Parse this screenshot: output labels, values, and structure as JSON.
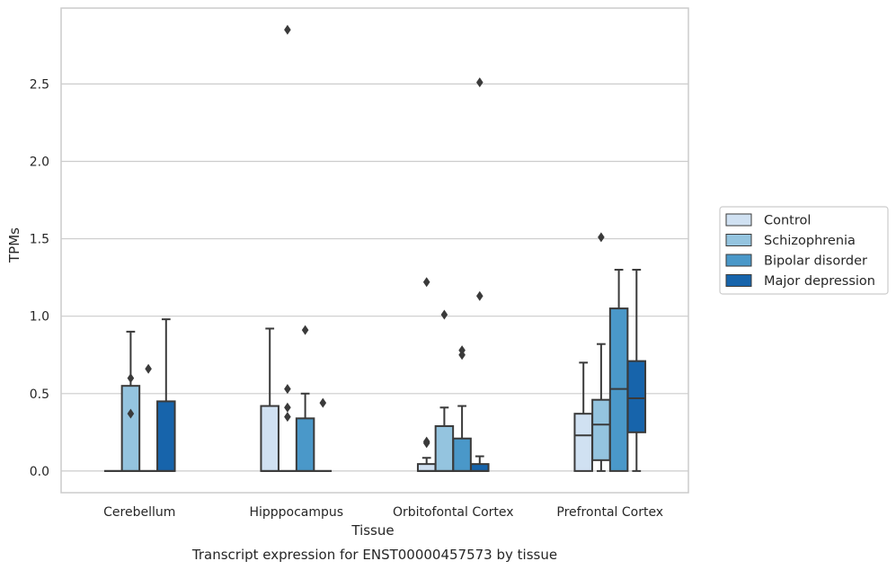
{
  "chart_data": {
    "type": "box",
    "title": "",
    "caption": "Transcript expression for ENST00000457573 by tissue",
    "xlabel": "Tissue",
    "ylabel": "TPMs",
    "ylim": [
      -0.14,
      2.99
    ],
    "yticks": [
      0.0,
      0.5,
      1.0,
      1.5,
      2.0,
      2.5
    ],
    "ytick_labels": [
      "0.0",
      "0.5",
      "1.0",
      "1.5",
      "2.0",
      "2.5"
    ],
    "grid": "horizontal",
    "legend_position": "outside-right",
    "categories": [
      "Cerebellum",
      "Hipppocampus",
      "Orbitofontal Cortex",
      "Prefrontal Cortex"
    ],
    "series": [
      {
        "name": "Control",
        "color": "#d0e1f2",
        "boxes": [
          {
            "min": 0,
            "q1": 0,
            "median": 0,
            "q3": 0,
            "max": 0,
            "outliers": []
          },
          {
            "min": 0,
            "q1": 0,
            "median": 0,
            "q3": 0.42,
            "max": 0.92,
            "outliers": []
          },
          {
            "min": 0,
            "q1": 0,
            "median": 0,
            "q3": 0.045,
            "max": 0.085,
            "outliers": [
              0.18,
              0.19,
              1.22
            ]
          },
          {
            "min": 0,
            "q1": 0,
            "median": 0.23,
            "q3": 0.37,
            "max": 0.7,
            "outliers": []
          }
        ]
      },
      {
        "name": "Schizophrenia",
        "color": "#94c4df",
        "boxes": [
          {
            "min": 0,
            "q1": 0,
            "median": 0,
            "q3": 0.55,
            "max": 0.9,
            "outliers": [
              0.37,
              0.6
            ]
          },
          {
            "min": 0,
            "q1": 0,
            "median": 0,
            "q3": 0,
            "max": 0,
            "outliers": [
              0.35,
              0.41,
              0.53,
              2.85
            ]
          },
          {
            "min": 0,
            "q1": 0,
            "median": 0,
            "q3": 0.29,
            "max": 0.41,
            "outliers": [
              1.01
            ]
          },
          {
            "min": 0,
            "q1": 0.07,
            "median": 0.3,
            "q3": 0.46,
            "max": 0.82,
            "outliers": [
              1.51
            ]
          }
        ]
      },
      {
        "name": "Bipolar disorder",
        "color": "#4a98c9",
        "boxes": [
          {
            "min": 0,
            "q1": 0,
            "median": 0,
            "q3": 0,
            "max": 0,
            "outliers": [
              0.66
            ]
          },
          {
            "min": 0,
            "q1": 0,
            "median": 0,
            "q3": 0.34,
            "max": 0.5,
            "outliers": [
              0.91
            ]
          },
          {
            "min": 0,
            "q1": 0,
            "median": 0,
            "q3": 0.21,
            "max": 0.42,
            "outliers": [
              0.75,
              0.78
            ]
          },
          {
            "min": 0,
            "q1": 0,
            "median": 0.53,
            "q3": 1.05,
            "max": 1.3,
            "outliers": []
          }
        ]
      },
      {
        "name": "Major depression",
        "color": "#1764ab",
        "boxes": [
          {
            "min": 0,
            "q1": 0,
            "median": 0,
            "q3": 0.45,
            "max": 0.98,
            "outliers": []
          },
          {
            "min": 0,
            "q1": 0,
            "median": 0,
            "q3": 0,
            "max": 0,
            "outliers": [
              0.44
            ]
          },
          {
            "min": 0,
            "q1": 0,
            "median": 0,
            "q3": 0.045,
            "max": 0.095,
            "outliers": [
              1.13,
              2.51
            ]
          },
          {
            "min": 0,
            "q1": 0.25,
            "median": 0.47,
            "q3": 0.71,
            "max": 1.3,
            "outliers": []
          }
        ]
      }
    ]
  }
}
